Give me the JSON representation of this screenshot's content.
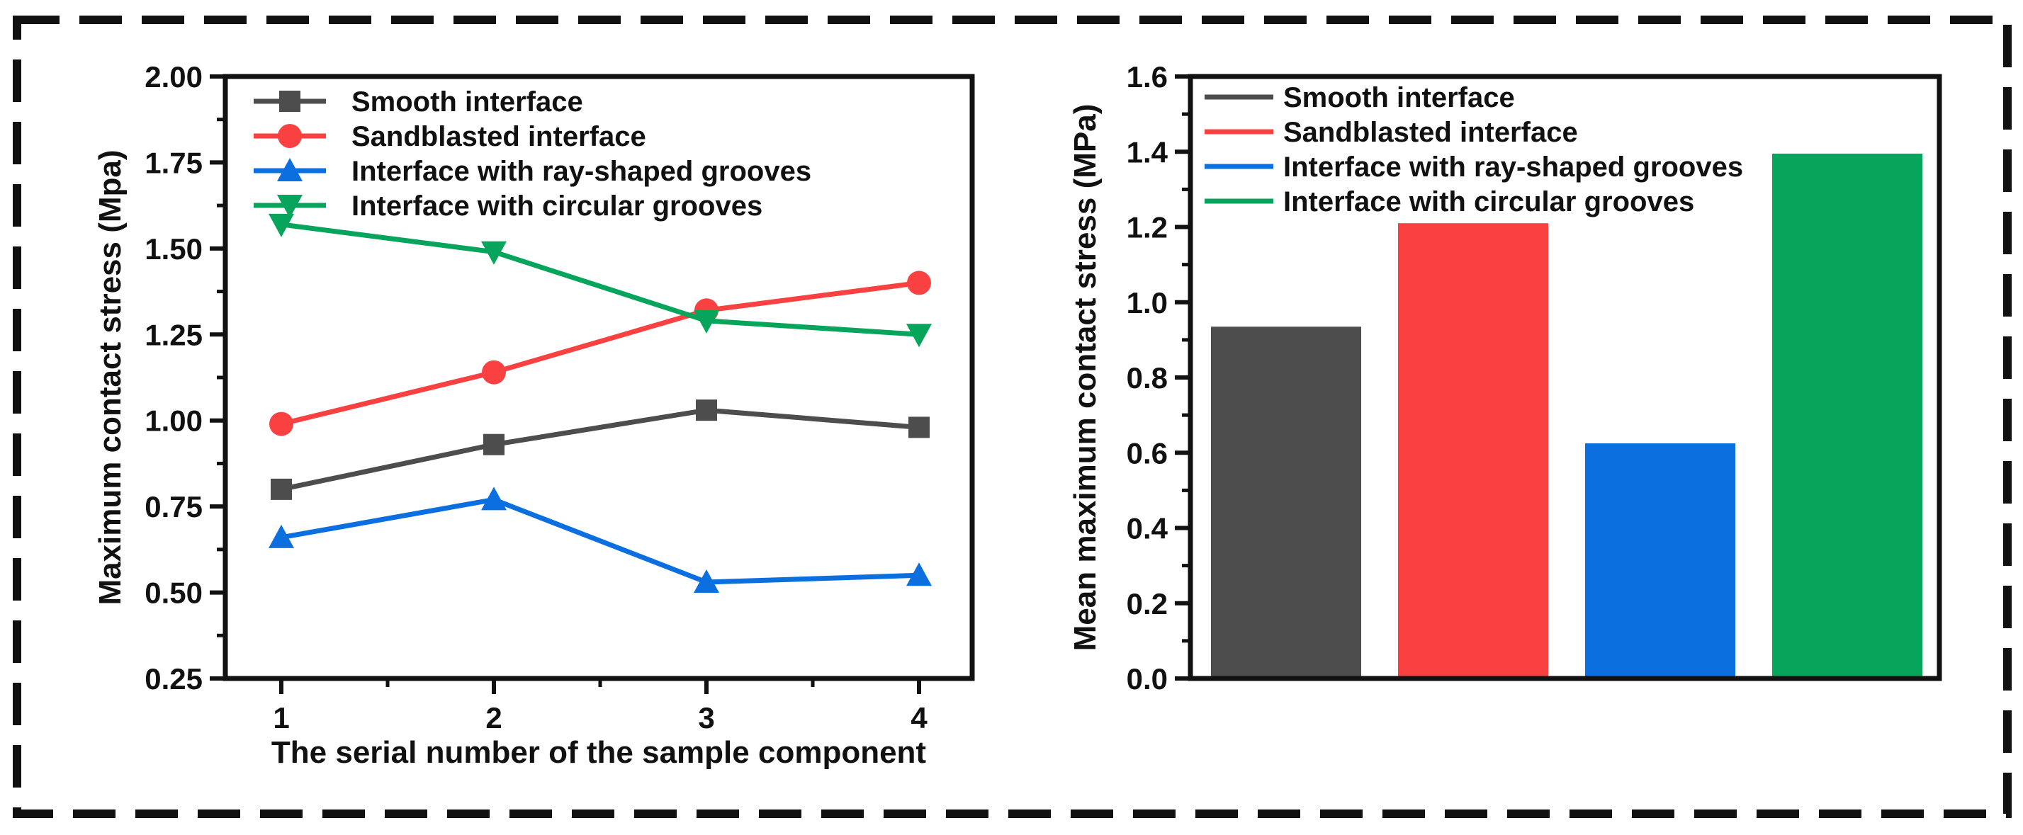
{
  "chart_data": [
    {
      "type": "line",
      "categories": [
        "1",
        "2",
        "3",
        "4"
      ],
      "x": [
        1,
        2,
        3,
        4
      ],
      "xlabel": "The serial number of the sample component",
      "ylabel": "Maximum contact stress (Mpa)",
      "ylim": [
        0.25,
        2.0
      ],
      "yticks": [
        0.25,
        0.5,
        0.75,
        1.0,
        1.25,
        1.5,
        1.75,
        2.0
      ],
      "ytick_labels": [
        "0.25",
        "0.50",
        "0.75",
        "1.00",
        "1.25",
        "1.50",
        "1.75",
        "2.00"
      ],
      "legend_position": "top-left",
      "series": [
        {
          "name": "Smooth interface",
          "color": "#4d4d4d",
          "marker": "square",
          "values": [
            0.8,
            0.93,
            1.03,
            0.98
          ]
        },
        {
          "name": "Sandblasted interface",
          "color": "#f94141",
          "marker": "circle",
          "values": [
            0.99,
            1.14,
            1.32,
            1.4
          ]
        },
        {
          "name": "Interface with ray-shaped grooves",
          "color": "#0b6fe0",
          "marker": "triangle-up",
          "values": [
            0.66,
            0.77,
            0.53,
            0.55
          ]
        },
        {
          "name": "Interface with circular grooves",
          "color": "#07a55c",
          "marker": "triangle-down",
          "values": [
            1.57,
            1.49,
            1.29,
            1.25
          ]
        }
      ]
    },
    {
      "type": "bar",
      "categories": [
        "Smooth interface",
        "Sandblasted interface",
        "Interface with ray-shaped grooves",
        "Interface with circular grooves"
      ],
      "values": [
        0.935,
        1.21,
        0.625,
        1.395
      ],
      "colors": [
        "#4d4d4d",
        "#f94141",
        "#0b6fe0",
        "#07a55c"
      ],
      "xlabel": "",
      "ylabel": "Mean maximum contact stress (MPa)",
      "ylim": [
        0.0,
        1.6
      ],
      "yticks": [
        0.0,
        0.2,
        0.4,
        0.6,
        0.8,
        1.0,
        1.2,
        1.4,
        1.6
      ],
      "ytick_labels": [
        "0.0",
        "0.2",
        "0.4",
        "0.6",
        "0.8",
        "1.0",
        "1.2",
        "1.4",
        "1.6"
      ],
      "legend_position": "top-left",
      "legend": [
        "Smooth interface",
        "Sandblasted interface",
        "Interface with ray-shaped grooves",
        "Interface with circular grooves"
      ]
    }
  ]
}
